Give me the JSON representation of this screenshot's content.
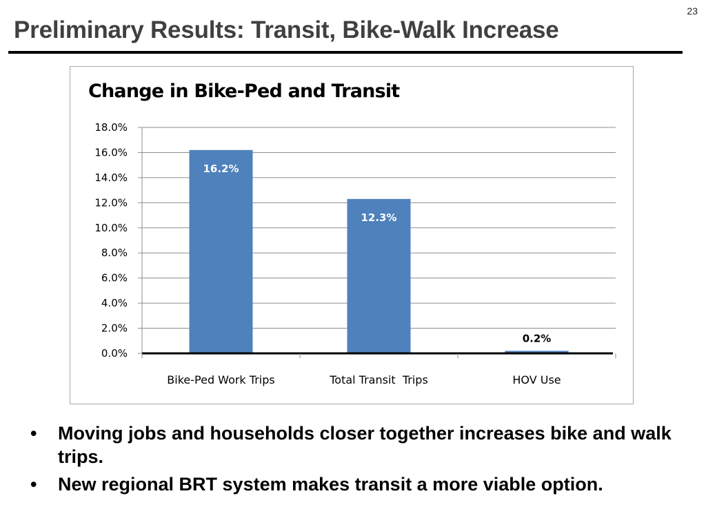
{
  "page_number": "23",
  "title": "Preliminary Results: Transit, Bike-Walk Increase",
  "chart_data": {
    "type": "bar",
    "title": "Change in Bike-Ped and Transit",
    "categories": [
      "Bike-Ped Work Trips",
      "Total Transit  Trips",
      "HOV Use"
    ],
    "values": [
      16.2,
      12.3,
      0.2
    ],
    "data_labels": [
      "16.2%",
      "12.3%",
      "0.2%"
    ],
    "ylim": [
      0,
      18
    ],
    "yticks": [
      0,
      2,
      4,
      6,
      8,
      10,
      12,
      14,
      16,
      18
    ],
    "ytick_labels": [
      "0.0%",
      "2.0%",
      "4.0%",
      "6.0%",
      "8.0%",
      "10.0%",
      "12.0%",
      "14.0%",
      "16.0%",
      "18.0%"
    ],
    "xlabel": "",
    "ylabel": "",
    "grid": true,
    "bar_color": "#4f81bd"
  },
  "bullets": [
    "Moving jobs and households closer together increases bike and walk trips.",
    "New regional BRT system makes transit a more viable option."
  ]
}
